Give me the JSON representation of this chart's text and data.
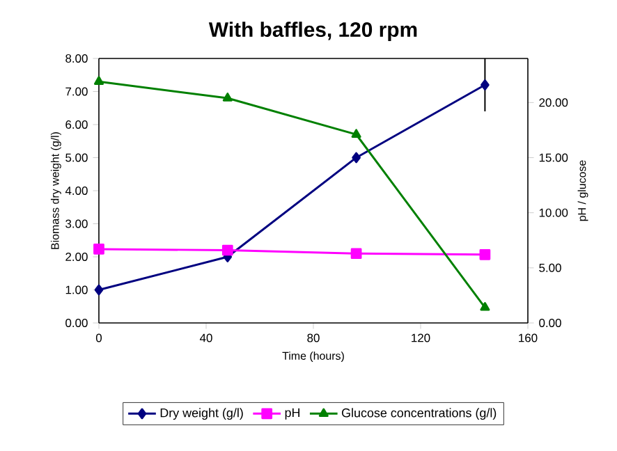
{
  "chart_data": {
    "type": "line",
    "title": "With baffles, 120 rpm",
    "xlabel": "Time (hours)",
    "ylabel": "Biomass dry weight (g/l)",
    "y2label": "pH / glucose",
    "x": [
      0,
      48,
      96,
      144
    ],
    "series": [
      {
        "name": "Dry weight (g/l)",
        "color": "#000080",
        "marker": "diamond",
        "values": [
          1.0,
          2.0,
          5.0,
          7.2
        ],
        "errors": [
          null,
          null,
          null,
          0.8
        ]
      },
      {
        "name": "pH",
        "color": "#ff00ff",
        "marker": "square",
        "axis": "y2",
        "values": [
          6.7,
          6.6,
          6.3,
          6.2
        ]
      },
      {
        "name": "Glucose concentrations (g/l)",
        "color": "#008000",
        "marker": "triangle",
        "axis": "y2",
        "values": [
          21.9,
          20.4,
          17.1,
          1.4
        ]
      }
    ],
    "xlim": [
      0,
      160
    ],
    "xticks": [
      0,
      40,
      80,
      120,
      160
    ],
    "ylim": [
      0,
      8
    ],
    "yticks": [
      {
        "value": 0,
        "label": "0.00"
      },
      {
        "value": 1,
        "label": "1.00"
      },
      {
        "value": 2,
        "label": "2.00"
      },
      {
        "value": 3,
        "label": "3.00"
      },
      {
        "value": 4,
        "label": "4.00"
      },
      {
        "value": 5,
        "label": "5.00"
      },
      {
        "value": 6,
        "label": "6.00"
      },
      {
        "value": 7,
        "label": "7.00"
      },
      {
        "value": 8,
        "label": "8.00"
      }
    ],
    "y2lim": [
      0,
      24
    ],
    "y2ticks": [
      {
        "value": 0,
        "label": "0.00"
      },
      {
        "value": 5,
        "label": "5.00"
      },
      {
        "value": 10,
        "label": "10.00"
      },
      {
        "value": 15,
        "label": "15.00"
      },
      {
        "value": 20,
        "label": "20.00"
      }
    ],
    "grid": false,
    "legend": "bottom"
  }
}
